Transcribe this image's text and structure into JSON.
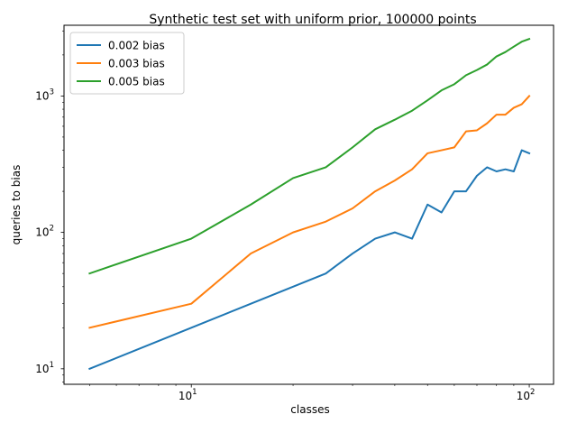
{
  "chart_data": {
    "type": "line",
    "title": "Synthetic test set with uniform prior, 100000 points",
    "xlabel": "classes",
    "ylabel": "queries to bias",
    "xscale": "log",
    "yscale": "log",
    "xlim": [
      4.2,
      118
    ],
    "ylim": [
      7.7,
      3300
    ],
    "x_ticks": [
      {
        "value": 10,
        "base": "10",
        "exp": "1"
      },
      {
        "value": 100,
        "base": "10",
        "exp": "2"
      }
    ],
    "y_ticks": [
      {
        "value": 10,
        "base": "10",
        "exp": "1"
      },
      {
        "value": 100,
        "base": "10",
        "exp": "2"
      },
      {
        "value": 1000,
        "base": "10",
        "exp": "3"
      }
    ],
    "grid": false,
    "legend_position": "upper left",
    "series": [
      {
        "name": "0.002 bias",
        "color": "#1f77b4",
        "x": [
          5,
          10,
          15,
          20,
          25,
          30,
          35,
          40,
          45,
          50,
          55,
          60,
          65,
          70,
          75,
          80,
          85,
          90,
          95,
          100
        ],
        "y": [
          10,
          20,
          30,
          40,
          50,
          70,
          90,
          100,
          90,
          160,
          140,
          200,
          200,
          260,
          300,
          280,
          290,
          280,
          400,
          380
        ]
      },
      {
        "name": "0.003 bias",
        "color": "#ff7f0e",
        "x": [
          5,
          10,
          15,
          20,
          25,
          30,
          35,
          40,
          45,
          50,
          55,
          60,
          65,
          70,
          75,
          80,
          85,
          90,
          95,
          100
        ],
        "y": [
          20,
          30,
          70,
          100,
          120,
          150,
          200,
          240,
          290,
          380,
          400,
          420,
          550,
          560,
          630,
          730,
          730,
          820,
          870,
          1000
        ]
      },
      {
        "name": "0.005 bias",
        "color": "#2ca02c",
        "x": [
          5,
          10,
          15,
          20,
          25,
          30,
          35,
          40,
          45,
          50,
          55,
          60,
          65,
          70,
          75,
          80,
          85,
          90,
          95,
          100
        ],
        "y": [
          50,
          90,
          160,
          250,
          300,
          420,
          570,
          670,
          780,
          930,
          1100,
          1220,
          1420,
          1550,
          1700,
          1950,
          2100,
          2300,
          2500,
          2620
        ]
      }
    ]
  }
}
